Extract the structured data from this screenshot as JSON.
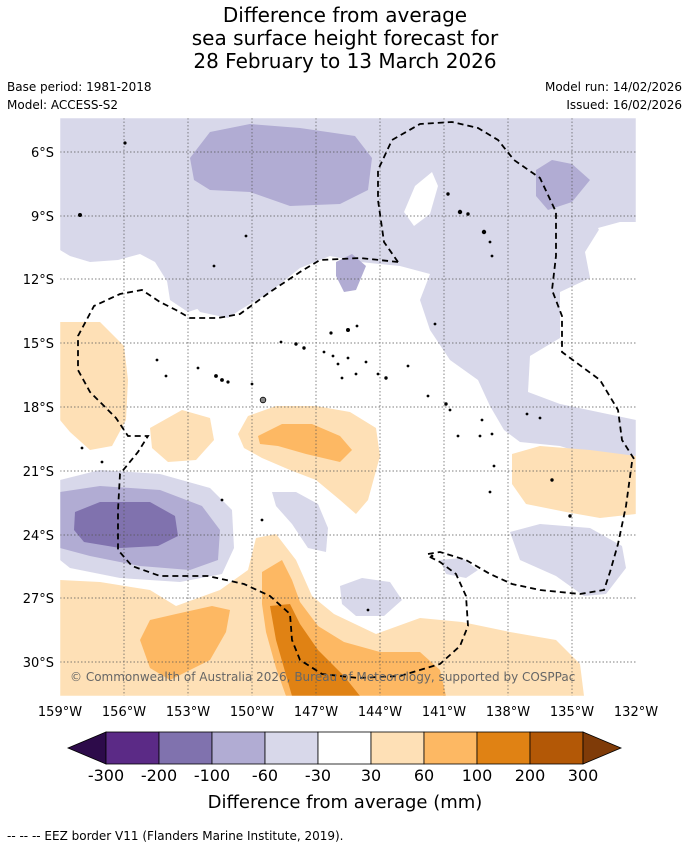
{
  "title": {
    "line1": "Difference from average",
    "line2": "sea surface height forecast for",
    "line3": "28 February to 13 March 2026"
  },
  "meta": {
    "base_period": "Base period: 1981-2018",
    "model": "Model: ACCESS-S2",
    "model_run": "Model run: 14/02/2026",
    "issued": "Issued: 16/02/2026"
  },
  "axes": {
    "lat_labels": [
      "6°S",
      "9°S",
      "12°S",
      "15°S",
      "18°S",
      "21°S",
      "24°S",
      "27°S",
      "30°S"
    ],
    "lon_labels": [
      "159°W",
      "156°W",
      "153°W",
      "150°W",
      "147°W",
      "144°W",
      "141°W",
      "138°W",
      "135°W",
      "132°W"
    ]
  },
  "copyright": "© Commonwealth of Australia 2026, Bureau of Meteorology, supported by COSPPac",
  "colorbar": {
    "title": "Difference from average (mm)",
    "ticks": [
      "-300",
      "-200",
      "-100",
      "-60",
      "-30",
      "30",
      "60",
      "100",
      "200",
      "300"
    ],
    "colors": {
      "under": "#2d0b4a",
      "n300_200": "#5b2a86",
      "n200_100": "#8072ae",
      "n100_60": "#b1acd3",
      "n60_30": "#d8d8ea",
      "neutral": "#ffffff",
      "p30_60": "#fee0b6",
      "p60_100": "#fdb863",
      "p100_200": "#e08214",
      "p200_300": "#b35806",
      "over": "#7f3b08"
    }
  },
  "footer": "--  --  -- EEZ border V11 (Flanders Marine Institute, 2019)."
}
